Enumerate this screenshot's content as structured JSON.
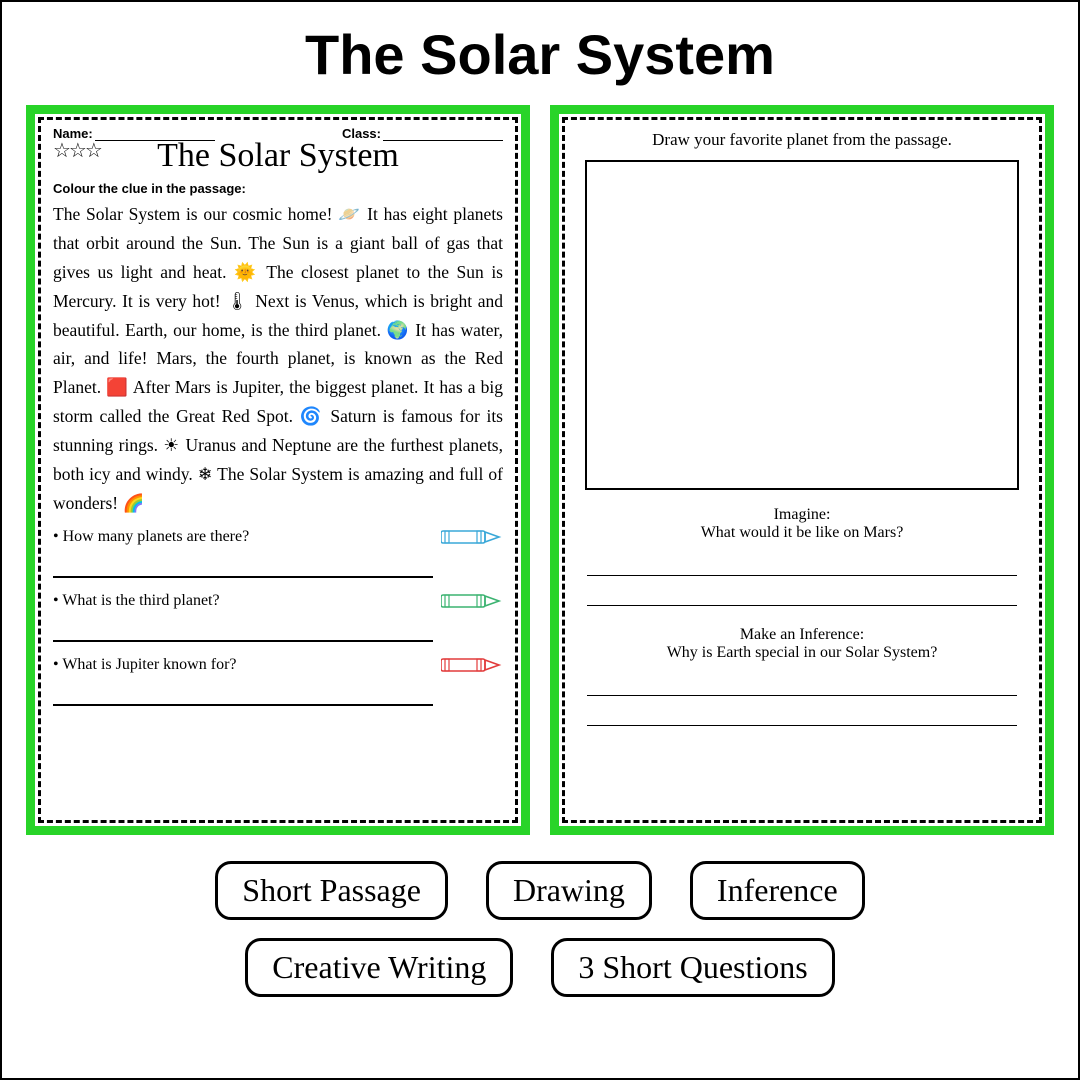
{
  "main_title": "The Solar System",
  "page1": {
    "name_label": "Name:",
    "class_label": "Class:",
    "star_count": 3,
    "worksheet_title": "The Solar System",
    "instruction": "Colour the clue in the passage:",
    "passage": "The Solar System is our cosmic home! 🪐 It has eight planets that orbit around the Sun. The Sun is a giant ball of gas that gives us light and heat. 🌞 The closest planet to the Sun is Mercury. It is very hot! 🌡 Next is Venus, which is bright and beautiful. Earth, our home, is the third planet. 🌍 It has water, air, and life! Mars, the fourth planet, is known as the Red Planet. 🟥 After Mars is Jupiter, the biggest planet. It has a big storm called the Great Red Spot. 🌀 Saturn is famous for its stunning rings. ☀ Uranus and Neptune are the furthest planets, both icy and windy. ❄ The Solar System is amazing and full of wonders! 🌈",
    "questions": [
      {
        "text": "How many planets are there?",
        "crayon_color": "#3aa8d8"
      },
      {
        "text": "What is the third planet?",
        "crayon_color": "#3cb371"
      },
      {
        "text": "What is Jupiter known for?",
        "crayon_color": "#e23b3b"
      }
    ]
  },
  "page2": {
    "draw_prompt": "Draw your favorite planet from the passage.",
    "imagine_label": "Imagine:",
    "imagine_q": "What would it be like on Mars?",
    "infer_label": "Make an Inference:",
    "infer_q": "Why is Earth special in our Solar System?"
  },
  "tags": [
    "Short Passage",
    "Drawing",
    "Inference",
    "Creative Writing",
    "3 Short Questions"
  ],
  "colors": {
    "page_border": "#28d428",
    "text": "#000000",
    "background": "#ffffff"
  }
}
